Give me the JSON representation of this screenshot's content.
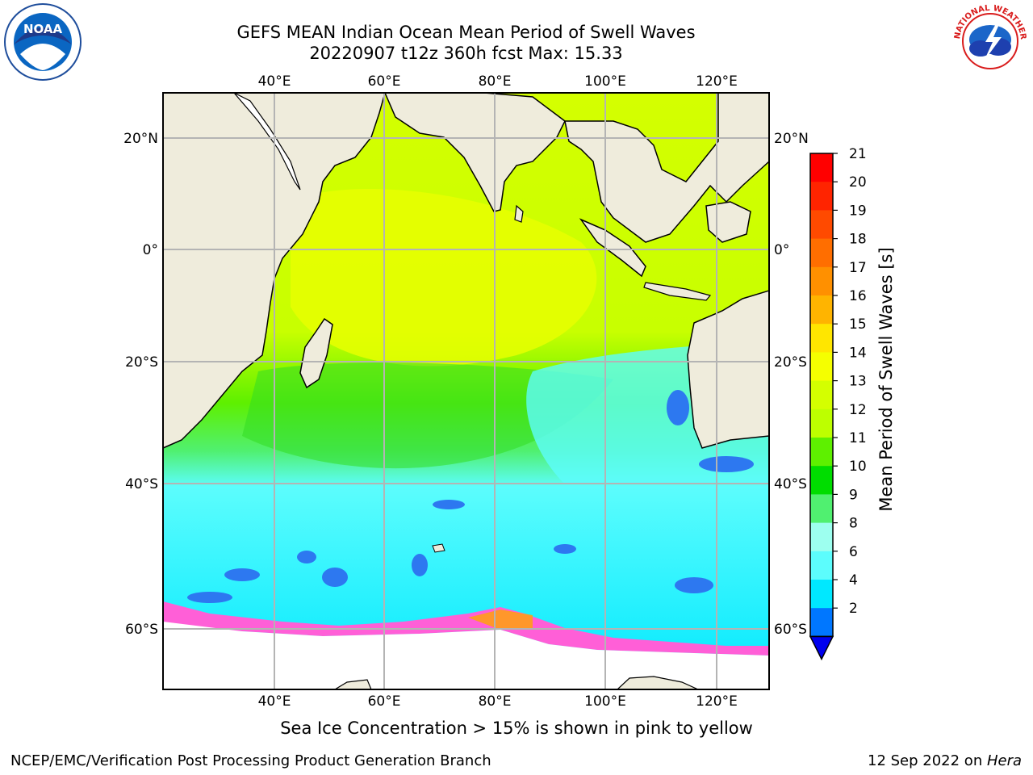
{
  "title": {
    "line1": "GEFS MEAN Indian Ocean Mean Period of Swell Waves",
    "line2": "20220907 t12z 360h fcst   Max: 15.33"
  },
  "map": {
    "lon_labels": [
      "40°E",
      "60°E",
      "80°E",
      "100°E",
      "120°E"
    ],
    "lat_labels_left": [
      "20°N",
      "0°",
      "20°S",
      "40°S",
      "60°S"
    ],
    "lat_labels_right": [
      "20°N",
      "0°",
      "20°S",
      "40°S",
      "60°S"
    ],
    "land_color": "#efecdc",
    "gridline_color": "#b4b4b4"
  },
  "colorbar": {
    "label": "Mean Period of Swell Waves [s]",
    "ticks": [
      "21",
      "20",
      "19",
      "18",
      "17",
      "16",
      "15",
      "14",
      "13",
      "12",
      "11",
      "10",
      "9",
      "8",
      "6",
      "4",
      "2"
    ],
    "colors": [
      "#ff0000",
      "#ff2400",
      "#ff4a00",
      "#ff6e00",
      "#ff9000",
      "#ffb400",
      "#ffe600",
      "#f5ff00",
      "#d4ff00",
      "#bdff00",
      "#5ef000",
      "#00dd00",
      "#50f070",
      "#9dffef",
      "#5cfdfd",
      "#00e8ff",
      "#0077ff"
    ],
    "extend_color": "#0000ee"
  },
  "caption": "Sea Ice Concentration > 15% is shown in pink to yellow",
  "footer": {
    "left": "NCEP/EMC/Verification Post Processing Product Generation Branch",
    "right_prefix": "12 Sep 2022 on ",
    "right_host": "Hera"
  },
  "logos": {
    "left": {
      "icon": "noaa-logo",
      "text": "NOAA"
    },
    "right": {
      "icon": "nws-logo",
      "text": "NATIONAL WEATHER SERVICE"
    }
  }
}
